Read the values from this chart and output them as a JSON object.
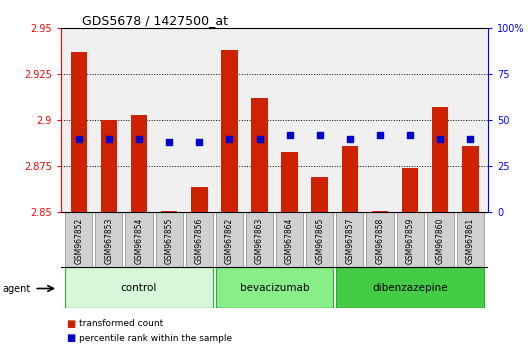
{
  "title": "GDS5678 / 1427500_at",
  "samples": [
    "GSM967852",
    "GSM967853",
    "GSM967854",
    "GSM967855",
    "GSM967856",
    "GSM967862",
    "GSM967863",
    "GSM967864",
    "GSM967865",
    "GSM967857",
    "GSM967858",
    "GSM967859",
    "GSM967860",
    "GSM967861"
  ],
  "transformed_count": [
    2.937,
    2.9,
    2.903,
    2.851,
    2.864,
    2.938,
    2.912,
    2.883,
    2.869,
    2.886,
    2.851,
    2.874,
    2.907,
    2.886
  ],
  "percentile_rank": [
    40,
    40,
    40,
    38,
    38,
    40,
    40,
    42,
    42,
    40,
    42,
    42,
    40,
    40
  ],
  "groups": [
    {
      "label": "control",
      "start": 0,
      "end": 5,
      "color": "#d8f7d8"
    },
    {
      "label": "bevacizumab",
      "start": 5,
      "end": 9,
      "color": "#88ee88"
    },
    {
      "label": "dibenzazepine",
      "start": 9,
      "end": 14,
      "color": "#44cc44"
    }
  ],
  "ylim_left": [
    2.85,
    2.95
  ],
  "ylim_right": [
    0,
    100
  ],
  "yticks_left": [
    2.85,
    2.875,
    2.9,
    2.925,
    2.95
  ],
  "yticks_right": [
    0,
    25,
    50,
    75,
    100
  ],
  "bar_color": "#cc2200",
  "dot_color": "#0000cc",
  "plot_bg_color": "#f0f0f0",
  "sample_box_color": "#d0d0d0",
  "legend_bar_label": "transformed count",
  "legend_dot_label": "percentile rank within the sample",
  "agent_label": "agent",
  "grid_color": "#000000",
  "group_border_color": "#33aa33"
}
